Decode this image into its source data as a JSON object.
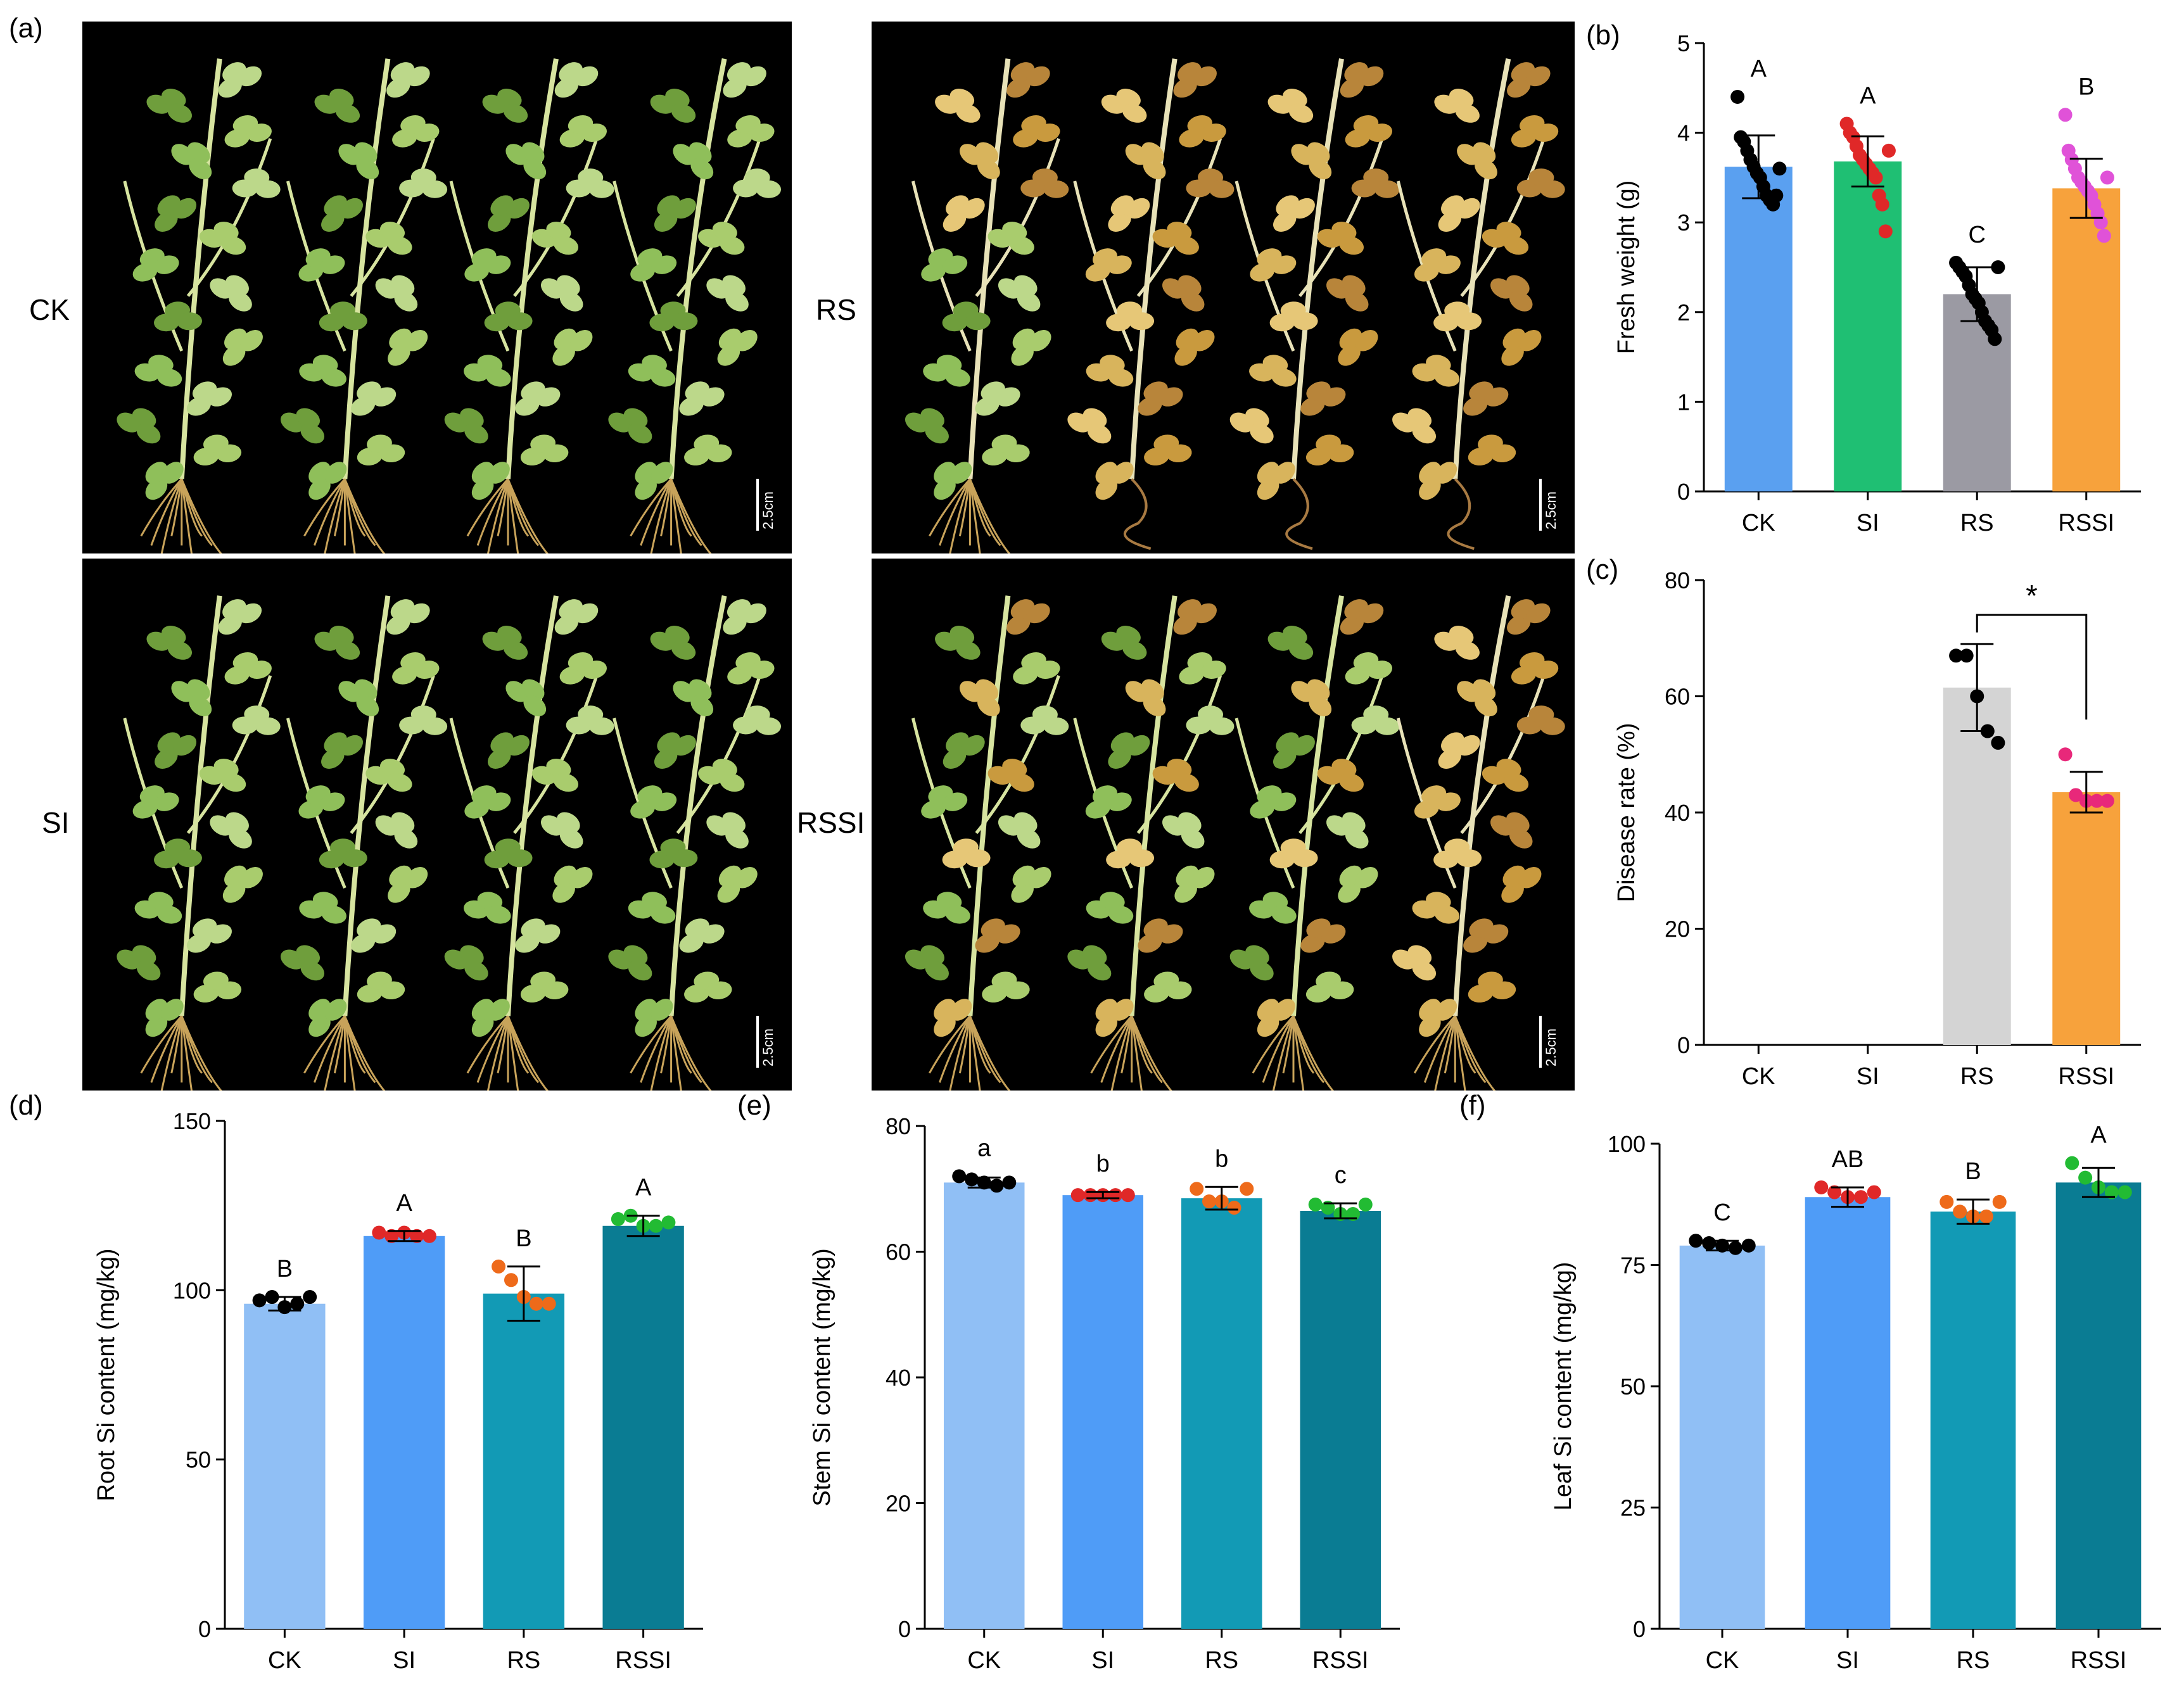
{
  "panels": {
    "a": {
      "letter": "(a)",
      "photos": [
        {
          "label": "CK",
          "scale": "2.5cm",
          "condition": "healthy"
        },
        {
          "label": "RS",
          "scale": "2.5cm",
          "condition": "diseased"
        },
        {
          "label": "SI",
          "scale": "2.5cm",
          "condition": "healthy"
        },
        {
          "label": "RSSI",
          "scale": "2.5cm",
          "condition": "partial"
        }
      ]
    }
  },
  "chart_data": [
    {
      "id": "b",
      "letter": "(b)",
      "type": "bar",
      "categories": [
        "CK",
        "SI",
        "RS",
        "RSSI"
      ],
      "values": [
        3.62,
        3.68,
        2.2,
        3.38
      ],
      "errors": [
        0.35,
        0.28,
        0.3,
        0.33
      ],
      "letters": [
        "A",
        "A",
        "C",
        "B"
      ],
      "colors": [
        "#5aa0f0",
        "#1fbf73",
        "#9b9aa3",
        "#f7a23c"
      ],
      "point_colors": [
        "#000000",
        "#e02828",
        "#000000",
        "#e052d8"
      ],
      "points": [
        [
          4.4,
          3.95,
          3.9,
          3.8,
          3.7,
          3.62,
          3.55,
          3.5,
          3.4,
          3.3,
          3.25,
          3.2,
          3.3,
          3.6
        ],
        [
          4.1,
          4.0,
          3.95,
          3.85,
          3.75,
          3.7,
          3.65,
          3.6,
          3.55,
          3.5,
          3.3,
          3.2,
          2.9,
          3.8
        ],
        [
          2.55,
          2.5,
          2.45,
          2.4,
          2.3,
          2.2,
          2.15,
          2.1,
          2.0,
          1.9,
          1.85,
          1.8,
          1.7,
          2.5
        ],
        [
          4.2,
          3.8,
          3.7,
          3.6,
          3.5,
          3.45,
          3.4,
          3.35,
          3.3,
          3.2,
          3.1,
          3.0,
          2.85,
          3.5
        ]
      ],
      "ylabel": "Fresh weight (g)",
      "ylim": [
        0,
        5
      ],
      "yticks": [
        "0",
        "1",
        "2",
        "3",
        "4",
        "5"
      ]
    },
    {
      "id": "c",
      "letter": "(c)",
      "type": "bar",
      "categories": [
        "CK",
        "SI",
        "RS",
        "RSSI"
      ],
      "values": [
        null,
        null,
        61.5,
        43.5
      ],
      "errors": [
        null,
        null,
        7.5,
        3.5
      ],
      "letters": [
        "",
        "",
        "",
        ""
      ],
      "colors": [
        "#ffffff",
        "#ffffff",
        "#d4d4d4",
        "#f7a23c"
      ],
      "point_colors": [
        "#000000",
        "#000000",
        "#000000",
        "#e8287a"
      ],
      "points": [
        [],
        [],
        [
          67,
          67,
          60,
          54,
          52
        ],
        [
          50,
          43,
          42,
          42,
          42
        ]
      ],
      "ylabel": "Disease rate (%)",
      "ylim": [
        0,
        80
      ],
      "yticks": [
        "0",
        "20",
        "40",
        "60",
        "80"
      ],
      "significance": "*"
    },
    {
      "id": "d",
      "letter": "(d)",
      "type": "bar",
      "categories": [
        "CK",
        "SI",
        "RS",
        "RSSI"
      ],
      "values": [
        96,
        116,
        99,
        119
      ],
      "errors": [
        2,
        1.5,
        8,
        3
      ],
      "letters": [
        "B",
        "A",
        "B",
        "A"
      ],
      "colors": [
        "#90bff5",
        "#4f9cf7",
        "#129ab5",
        "#0a7c93"
      ],
      "point_colors": [
        "#000000",
        "#e02828",
        "#ee6a1a",
        "#22bb33"
      ],
      "points": [
        [
          97,
          98,
          95,
          96,
          98
        ],
        [
          117,
          116,
          117,
          116,
          116
        ],
        [
          107,
          103,
          98,
          96,
          96
        ],
        [
          121,
          122,
          119,
          119,
          120
        ]
      ],
      "ylabel": "Root Si content (mg/kg)",
      "ylim": [
        0,
        150
      ],
      "yticks": [
        "0",
        "50",
        "100",
        "150"
      ]
    },
    {
      "id": "e",
      "letter": "(e)",
      "type": "bar",
      "categories": [
        "CK",
        "SI",
        "RS",
        "RSSI"
      ],
      "values": [
        71,
        69,
        68.5,
        66.5
      ],
      "errors": [
        0.8,
        0.5,
        1.8,
        1.2
      ],
      "letters": [
        "a",
        "b",
        "b",
        "c"
      ],
      "colors": [
        "#90bff5",
        "#4f9cf7",
        "#129ab5",
        "#0a7c93"
      ],
      "point_colors": [
        "#000000",
        "#e02828",
        "#ee6a1a",
        "#22bb33"
      ],
      "points": [
        [
          72,
          71.5,
          71,
          70.5,
          71
        ],
        [
          69,
          69,
          69,
          69,
          69
        ],
        [
          70,
          68,
          68,
          67,
          70
        ],
        [
          67.5,
          67,
          66,
          66,
          67.5
        ]
      ],
      "ylabel": "Stem Si content (mg/kg)",
      "ylim": [
        0,
        80
      ],
      "yticks": [
        "0",
        "20",
        "40",
        "60",
        "80"
      ]
    },
    {
      "id": "f",
      "letter": "(f)",
      "type": "bar",
      "categories": [
        "CK",
        "SI",
        "RS",
        "RSSI"
      ],
      "values": [
        79,
        89,
        86,
        92
      ],
      "errors": [
        1,
        2,
        2.5,
        3
      ],
      "letters": [
        "C",
        "AB",
        "B",
        "A"
      ],
      "colors": [
        "#90bff5",
        "#4f9cf7",
        "#129ab5",
        "#0a7c93"
      ],
      "point_colors": [
        "#000000",
        "#e02828",
        "#ee6a1a",
        "#22bb33"
      ],
      "points": [
        [
          80,
          79.5,
          79,
          78.5,
          79
        ],
        [
          91,
          90,
          89,
          89,
          90
        ],
        [
          88,
          86,
          85,
          85,
          88
        ],
        [
          96,
          93,
          91,
          90,
          90
        ]
      ],
      "ylabel": "Leaf Si content (mg/kg)",
      "ylim": [
        0,
        100
      ],
      "yticks": [
        "0",
        "25",
        "50",
        "75",
        "100"
      ]
    }
  ]
}
